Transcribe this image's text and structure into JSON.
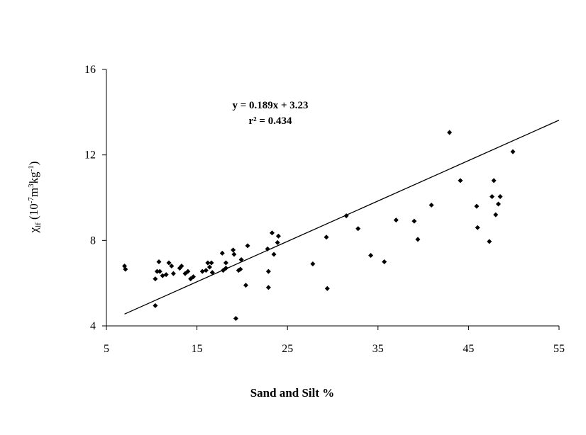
{
  "chart_data": {
    "type": "scatter",
    "xlabel": "Sand and Silt %",
    "ylabel": {
      "symbol": "χ",
      "subscript": "lf",
      "units_main": " (10",
      "units_exp1": "-7",
      "units_mid": "m",
      "units_exp2": "3",
      "units_mid2": "kg",
      "units_exp3": "-1",
      "units_end": ")"
    },
    "xlim": [
      5,
      55
    ],
    "ylim": [
      4,
      16
    ],
    "xticks": [
      "5",
      "15",
      "25",
      "35",
      "45",
      "55"
    ],
    "yticks": [
      "4",
      "8",
      "12",
      "16"
    ],
    "regression": {
      "slope": 0.189,
      "intercept": 3.23,
      "x_start": 7,
      "x_end": 55
    },
    "annotations": {
      "equation": "y = 0.189x + 3.23",
      "r2": "r² = 0.434"
    },
    "points": [
      [
        7.0,
        6.8
      ],
      [
        7.1,
        6.65
      ],
      [
        10.4,
        6.2
      ],
      [
        10.4,
        4.95
      ],
      [
        10.6,
        6.55
      ],
      [
        10.8,
        7.0
      ],
      [
        10.9,
        6.55
      ],
      [
        11.2,
        6.35
      ],
      [
        11.6,
        6.4
      ],
      [
        11.9,
        6.95
      ],
      [
        12.2,
        6.8
      ],
      [
        12.4,
        6.45
      ],
      [
        13.1,
        6.7
      ],
      [
        13.3,
        6.8
      ],
      [
        13.7,
        6.45
      ],
      [
        14.0,
        6.55
      ],
      [
        14.3,
        6.2
      ],
      [
        14.6,
        6.3
      ],
      [
        15.6,
        6.55
      ],
      [
        16.0,
        6.6
      ],
      [
        16.2,
        6.95
      ],
      [
        16.4,
        6.75
      ],
      [
        16.6,
        6.95
      ],
      [
        16.7,
        6.5
      ],
      [
        17.8,
        7.4
      ],
      [
        17.9,
        6.6
      ],
      [
        18.2,
        6.7
      ],
      [
        18.2,
        6.95
      ],
      [
        19.0,
        7.55
      ],
      [
        19.1,
        7.35
      ],
      [
        19.3,
        4.35
      ],
      [
        19.6,
        6.6
      ],
      [
        19.8,
        6.65
      ],
      [
        19.9,
        7.1
      ],
      [
        20.4,
        5.9
      ],
      [
        20.6,
        7.75
      ],
      [
        22.8,
        7.6
      ],
      [
        22.9,
        5.8
      ],
      [
        22.9,
        6.55
      ],
      [
        23.3,
        8.35
      ],
      [
        23.5,
        7.35
      ],
      [
        23.9,
        7.9
      ],
      [
        24.0,
        8.2
      ],
      [
        27.8,
        6.9
      ],
      [
        29.3,
        8.15
      ],
      [
        29.4,
        5.75
      ],
      [
        31.5,
        9.15
      ],
      [
        32.8,
        8.55
      ],
      [
        34.2,
        7.3
      ],
      [
        35.7,
        7.0
      ],
      [
        37.0,
        8.95
      ],
      [
        39.0,
        8.9
      ],
      [
        39.4,
        8.05
      ],
      [
        40.9,
        9.65
      ],
      [
        42.9,
        13.05
      ],
      [
        44.1,
        10.8
      ],
      [
        45.9,
        9.6
      ],
      [
        46.0,
        8.6
      ],
      [
        47.3,
        7.95
      ],
      [
        47.6,
        10.05
      ],
      [
        47.8,
        10.8
      ],
      [
        48.0,
        9.2
      ],
      [
        48.3,
        9.7
      ],
      [
        48.5,
        10.05
      ],
      [
        49.9,
        12.15
      ]
    ]
  }
}
